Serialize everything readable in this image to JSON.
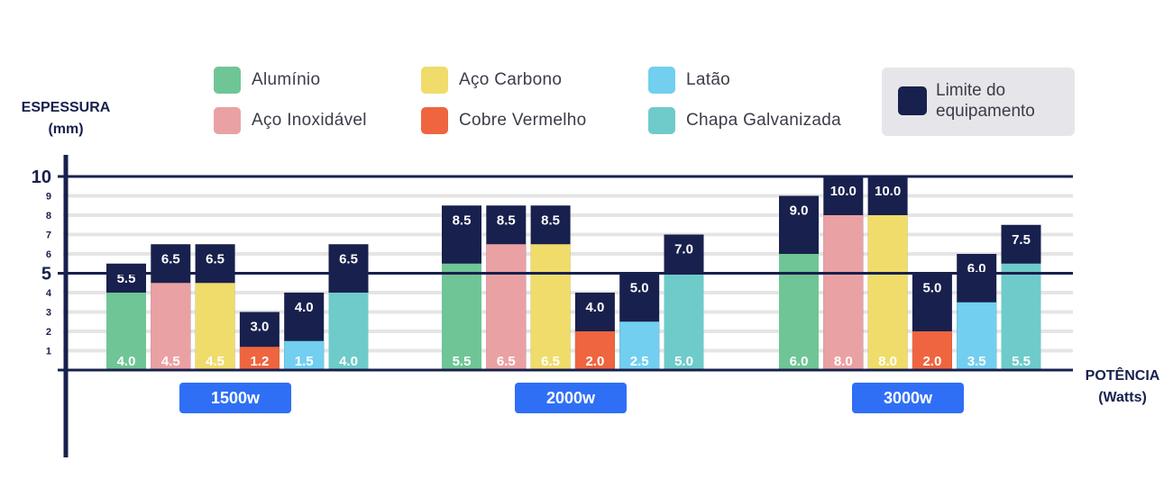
{
  "legend": {
    "items": [
      {
        "label": "Alumínio",
        "color": "#6fc595"
      },
      {
        "label": "Aço Carbono",
        "color": "#efdc6b"
      },
      {
        "label": "Latão",
        "color": "#72cff0"
      },
      {
        "label": "Aço Inoxidável",
        "color": "#eaa1a3"
      },
      {
        "label": "Cobre Vermelho",
        "color": "#ee6540"
      },
      {
        "label": "Chapa Galvanizada",
        "color": "#6ecbc9"
      }
    ],
    "limit_label": "Limite do equipamento",
    "limit_color": "#18204d"
  },
  "chart_data": {
    "type": "bar",
    "ylabel": "ESPESSURA (mm)",
    "xlabel": "POTÊNCIA (Watts)",
    "ylim": [
      0,
      10
    ],
    "major_ticks": [
      10,
      5
    ],
    "minor_ticks": [
      9,
      8,
      7,
      6,
      4,
      3,
      2,
      1
    ],
    "grid": true,
    "legend_position": "top",
    "categories": [
      "1500w",
      "2000w",
      "3000w"
    ],
    "series": [
      {
        "name": "Alumínio",
        "color": "#6fc595",
        "values": [
          4.0,
          5.5,
          6.0
        ],
        "limits": [
          5.5,
          8.5,
          9.0
        ]
      },
      {
        "name": "Aço Inoxidável",
        "color": "#eaa1a3",
        "values": [
          4.5,
          6.5,
          8.0
        ],
        "limits": [
          6.5,
          8.5,
          10.0
        ]
      },
      {
        "name": "Aço Carbono",
        "color": "#efdc6b",
        "values": [
          4.5,
          6.5,
          8.0
        ],
        "limits": [
          6.5,
          8.5,
          10.0
        ]
      },
      {
        "name": "Cobre Vermelho",
        "color": "#ee6540",
        "values": [
          1.2,
          2.0,
          2.0
        ],
        "limits": [
          3.0,
          4.0,
          5.0
        ]
      },
      {
        "name": "Latão",
        "color": "#72cff0",
        "values": [
          1.5,
          2.5,
          3.5
        ],
        "limits": [
          4.0,
          5.0,
          6.0
        ]
      },
      {
        "name": "Chapa Galvanizada",
        "color": "#6ecbc9",
        "values": [
          4.0,
          5.0,
          5.5
        ],
        "limits": [
          6.5,
          7.0,
          7.5
        ]
      }
    ]
  }
}
